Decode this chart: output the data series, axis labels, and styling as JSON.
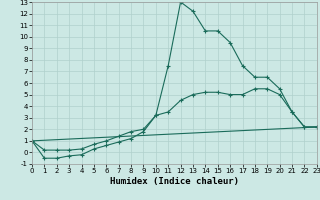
{
  "title": "",
  "xlabel": "Humidex (Indice chaleur)",
  "bg_color": "#cce8e4",
  "grid_color": "#b0d0cc",
  "line_color": "#1a6b5a",
  "xlim": [
    0,
    23
  ],
  "ylim": [
    -1,
    13
  ],
  "xticks": [
    0,
    1,
    2,
    3,
    4,
    5,
    6,
    7,
    8,
    9,
    10,
    11,
    12,
    13,
    14,
    15,
    16,
    17,
    18,
    19,
    20,
    21,
    22,
    23
  ],
  "yticks": [
    -1,
    0,
    1,
    2,
    3,
    4,
    5,
    6,
    7,
    8,
    9,
    10,
    11,
    12,
    13
  ],
  "line1_x": [
    0,
    1,
    2,
    3,
    4,
    5,
    6,
    7,
    8,
    9,
    10,
    11,
    12,
    13,
    14,
    15,
    16,
    17,
    18,
    19,
    20,
    21,
    22,
    23
  ],
  "line1_y": [
    1,
    -0.5,
    -0.5,
    -0.3,
    -0.2,
    0.3,
    0.6,
    0.9,
    1.2,
    1.8,
    3.2,
    7.5,
    13,
    12.2,
    10.5,
    10.5,
    9.5,
    7.5,
    6.5,
    6.5,
    5.5,
    3.5,
    2.2,
    2.2
  ],
  "line2_x": [
    0,
    1,
    2,
    3,
    4,
    5,
    6,
    7,
    8,
    9,
    10,
    11,
    12,
    13,
    14,
    15,
    16,
    17,
    18,
    19,
    20,
    21,
    22,
    23
  ],
  "line2_y": [
    1,
    0.2,
    0.2,
    0.2,
    0.3,
    0.7,
    1.0,
    1.4,
    1.8,
    2.0,
    3.2,
    3.5,
    4.5,
    5.0,
    5.2,
    5.2,
    5.0,
    5.0,
    5.5,
    5.5,
    5.0,
    3.5,
    2.2,
    2.2
  ],
  "line3_x": [
    0,
    23
  ],
  "line3_y": [
    1,
    2.2
  ],
  "xlabel_fontsize": 6.5,
  "tick_fontsize": 5.0
}
